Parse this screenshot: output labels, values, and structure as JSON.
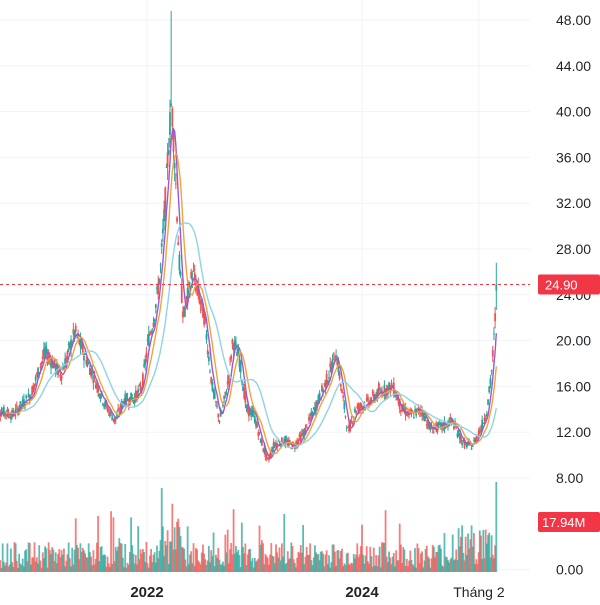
{
  "colors": {
    "up": "#26a69a",
    "down": "#ef5350",
    "price_tag": "#f23645",
    "ma_short": "#f0a33a",
    "ma_mid": "#9b59d0",
    "ma_long": "#8fd3e8",
    "grid": "#f0f3fa"
  },
  "chart_data": {
    "type": "line",
    "title": "",
    "xlabel": "",
    "ylabel": "",
    "ylim": [
      0,
      50
    ],
    "y_ticks": [
      "48.00",
      "44.00",
      "40.00",
      "36.00",
      "32.00",
      "28.00",
      "24.00",
      "20.00",
      "16.00",
      "12.00",
      "8.00",
      "0.00"
    ],
    "y_tick_values": [
      48,
      44,
      40,
      36,
      32,
      28,
      24,
      20,
      16,
      12,
      8,
      0
    ],
    "x_ticks": [
      "2022",
      "2024",
      "Tháng 2"
    ],
    "x_tick_dates": [
      "2022-01-01",
      "2024-01-01",
      "2025-02-01"
    ],
    "last_price": 24.9,
    "last_price_label": "24.90",
    "last_volume_label": "17.94M",
    "grid": true,
    "price_key_points": [
      [
        "2020-08-01",
        14.0
      ],
      [
        "2020-10-01",
        13.5
      ],
      [
        "2020-12-01",
        15.2
      ],
      [
        "2021-01-20",
        19.0
      ],
      [
        "2021-03-15",
        17.0
      ],
      [
        "2021-05-01",
        20.8
      ],
      [
        "2021-07-01",
        17.0
      ],
      [
        "2021-08-10",
        14.5
      ],
      [
        "2021-09-15",
        13.0
      ],
      [
        "2021-10-15",
        14.8
      ],
      [
        "2021-11-20",
        15.0
      ],
      [
        "2021-12-15",
        16.0
      ],
      [
        "2022-01-05",
        20.0
      ],
      [
        "2022-01-25",
        22.0
      ],
      [
        "2022-02-15",
        26.0
      ],
      [
        "2022-03-01",
        31.0
      ],
      [
        "2022-03-15",
        37.0
      ],
      [
        "2022-03-25",
        41.0
      ],
      [
        "2022-04-05",
        36.0
      ],
      [
        "2022-04-20",
        27.0
      ],
      [
        "2022-05-05",
        22.0
      ],
      [
        "2022-05-20",
        24.0
      ],
      [
        "2022-06-05",
        26.0
      ],
      [
        "2022-06-25",
        24.0
      ],
      [
        "2022-07-15",
        22.0
      ],
      [
        "2022-08-10",
        16.0
      ],
      [
        "2022-09-05",
        13.0
      ],
      [
        "2022-10-01",
        16.0
      ],
      [
        "2022-10-20",
        20.0
      ],
      [
        "2022-11-10",
        18.5
      ],
      [
        "2022-12-05",
        14.0
      ],
      [
        "2022-12-30",
        13.5
      ],
      [
        "2023-01-20",
        11.5
      ],
      [
        "2023-02-15",
        9.5
      ],
      [
        "2023-03-10",
        11.0
      ],
      [
        "2023-04-10",
        11.2
      ],
      [
        "2023-05-15",
        10.8
      ],
      [
        "2023-06-20",
        12.0
      ],
      [
        "2023-08-01",
        14.5
      ],
      [
        "2023-09-10",
        17.0
      ],
      [
        "2023-10-05",
        19.0
      ],
      [
        "2023-10-25",
        15.5
      ],
      [
        "2023-11-15",
        12.0
      ],
      [
        "2023-12-10",
        14.0
      ],
      [
        "2024-01-15",
        14.5
      ],
      [
        "2024-03-01",
        15.5
      ],
      [
        "2024-04-15",
        16.0
      ],
      [
        "2024-05-15",
        14.0
      ],
      [
        "2024-06-15",
        13.5
      ],
      [
        "2024-07-20",
        14.0
      ],
      [
        "2024-08-20",
        12.3
      ],
      [
        "2024-10-01",
        12.5
      ],
      [
        "2024-11-01",
        13.0
      ],
      [
        "2024-12-10",
        11.0
      ],
      [
        "2025-01-10",
        10.8
      ],
      [
        "2025-02-10",
        12.5
      ],
      [
        "2025-03-01",
        14.0
      ],
      [
        "2025-03-15",
        17.0
      ],
      [
        "2025-03-25",
        20.5
      ],
      [
        "2025-04-03",
        24.9
      ]
    ]
  }
}
